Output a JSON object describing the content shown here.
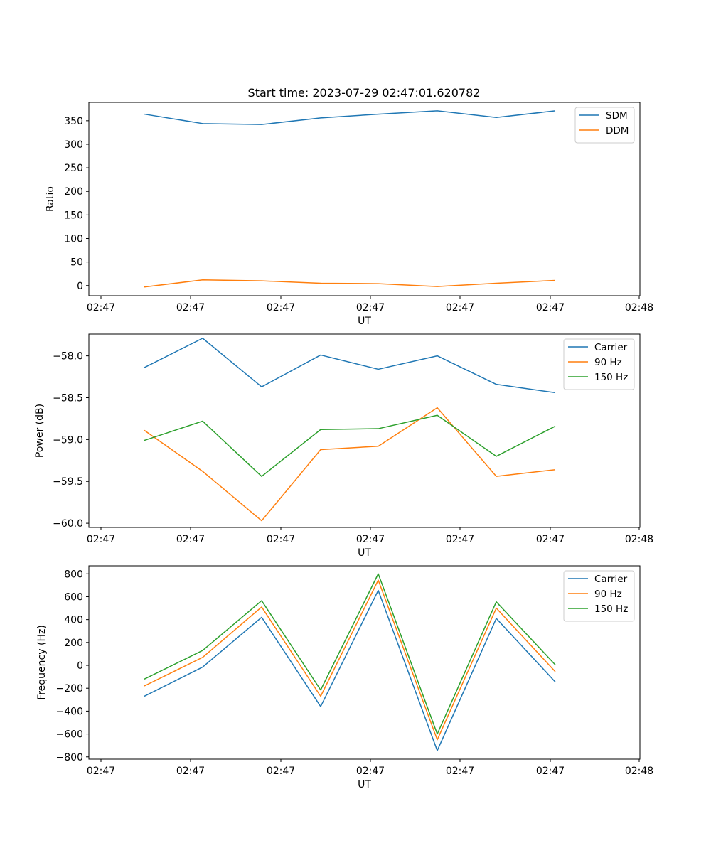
{
  "title": "Start time: 2023-07-29 02:47:01.620782",
  "chart_data": [
    {
      "type": "line",
      "ylabel": "Ratio",
      "xlabel": "UT",
      "x_tick_labels": [
        "02:47",
        "02:47",
        "02:47",
        "02:47",
        "02:47",
        "02:47",
        "02:48"
      ],
      "yticks": [
        0,
        50,
        100,
        150,
        200,
        250,
        300,
        350
      ],
      "ylim": [
        -21.5,
        389
      ],
      "legend_position": "top-right",
      "series": [
        {
          "name": "SDM",
          "color": "#1f77b4",
          "values": [
            364,
            344,
            342,
            356,
            364,
            371,
            357,
            371
          ]
        },
        {
          "name": "DDM",
          "color": "#ff7f0e",
          "values": [
            -3,
            12,
            10,
            5,
            4,
            -2,
            5,
            11
          ]
        }
      ]
    },
    {
      "type": "line",
      "ylabel": "Power (dB)",
      "xlabel": "UT",
      "x_tick_labels": [
        "02:47",
        "02:47",
        "02:47",
        "02:47",
        "02:47",
        "02:47",
        "02:48"
      ],
      "yticks": [
        -60.0,
        -59.5,
        -59.0,
        -58.5,
        -58.0
      ],
      "ylim": [
        -60.05,
        -57.74
      ],
      "legend_position": "top-right",
      "series": [
        {
          "name": "Carrier",
          "color": "#1f77b4",
          "values": [
            -58.14,
            -57.79,
            -58.37,
            -57.99,
            -58.16,
            -58.0,
            -58.34,
            -58.44
          ]
        },
        {
          "name": "90 Hz",
          "color": "#ff7f0e",
          "values": [
            -58.89,
            -59.38,
            -59.97,
            -59.12,
            -59.08,
            -58.62,
            -59.44,
            -59.36
          ]
        },
        {
          "name": "150 Hz",
          "color": "#2ca02c",
          "values": [
            -59.01,
            -58.78,
            -59.44,
            -58.88,
            -58.87,
            -58.71,
            -59.2,
            -58.84
          ]
        }
      ]
    },
    {
      "type": "line",
      "ylabel": "Frequency (Hz)",
      "xlabel": "UT",
      "x_tick_labels": [
        "02:47",
        "02:47",
        "02:47",
        "02:47",
        "02:47",
        "02:47",
        "02:48"
      ],
      "yticks": [
        -800,
        -600,
        -400,
        -200,
        0,
        200,
        400,
        600,
        800
      ],
      "ylim": [
        -820,
        870
      ],
      "legend_position": "top-right",
      "series": [
        {
          "name": "Carrier",
          "color": "#1f77b4",
          "values": [
            -270,
            -15,
            420,
            -360,
            655,
            -745,
            410,
            -145
          ]
        },
        {
          "name": "90 Hz",
          "color": "#ff7f0e",
          "values": [
            -180,
            70,
            510,
            -270,
            745,
            -650,
            500,
            -55
          ]
        },
        {
          "name": "150 Hz",
          "color": "#2ca02c",
          "values": [
            -120,
            130,
            565,
            -215,
            800,
            -600,
            555,
            5
          ]
        }
      ]
    }
  ]
}
